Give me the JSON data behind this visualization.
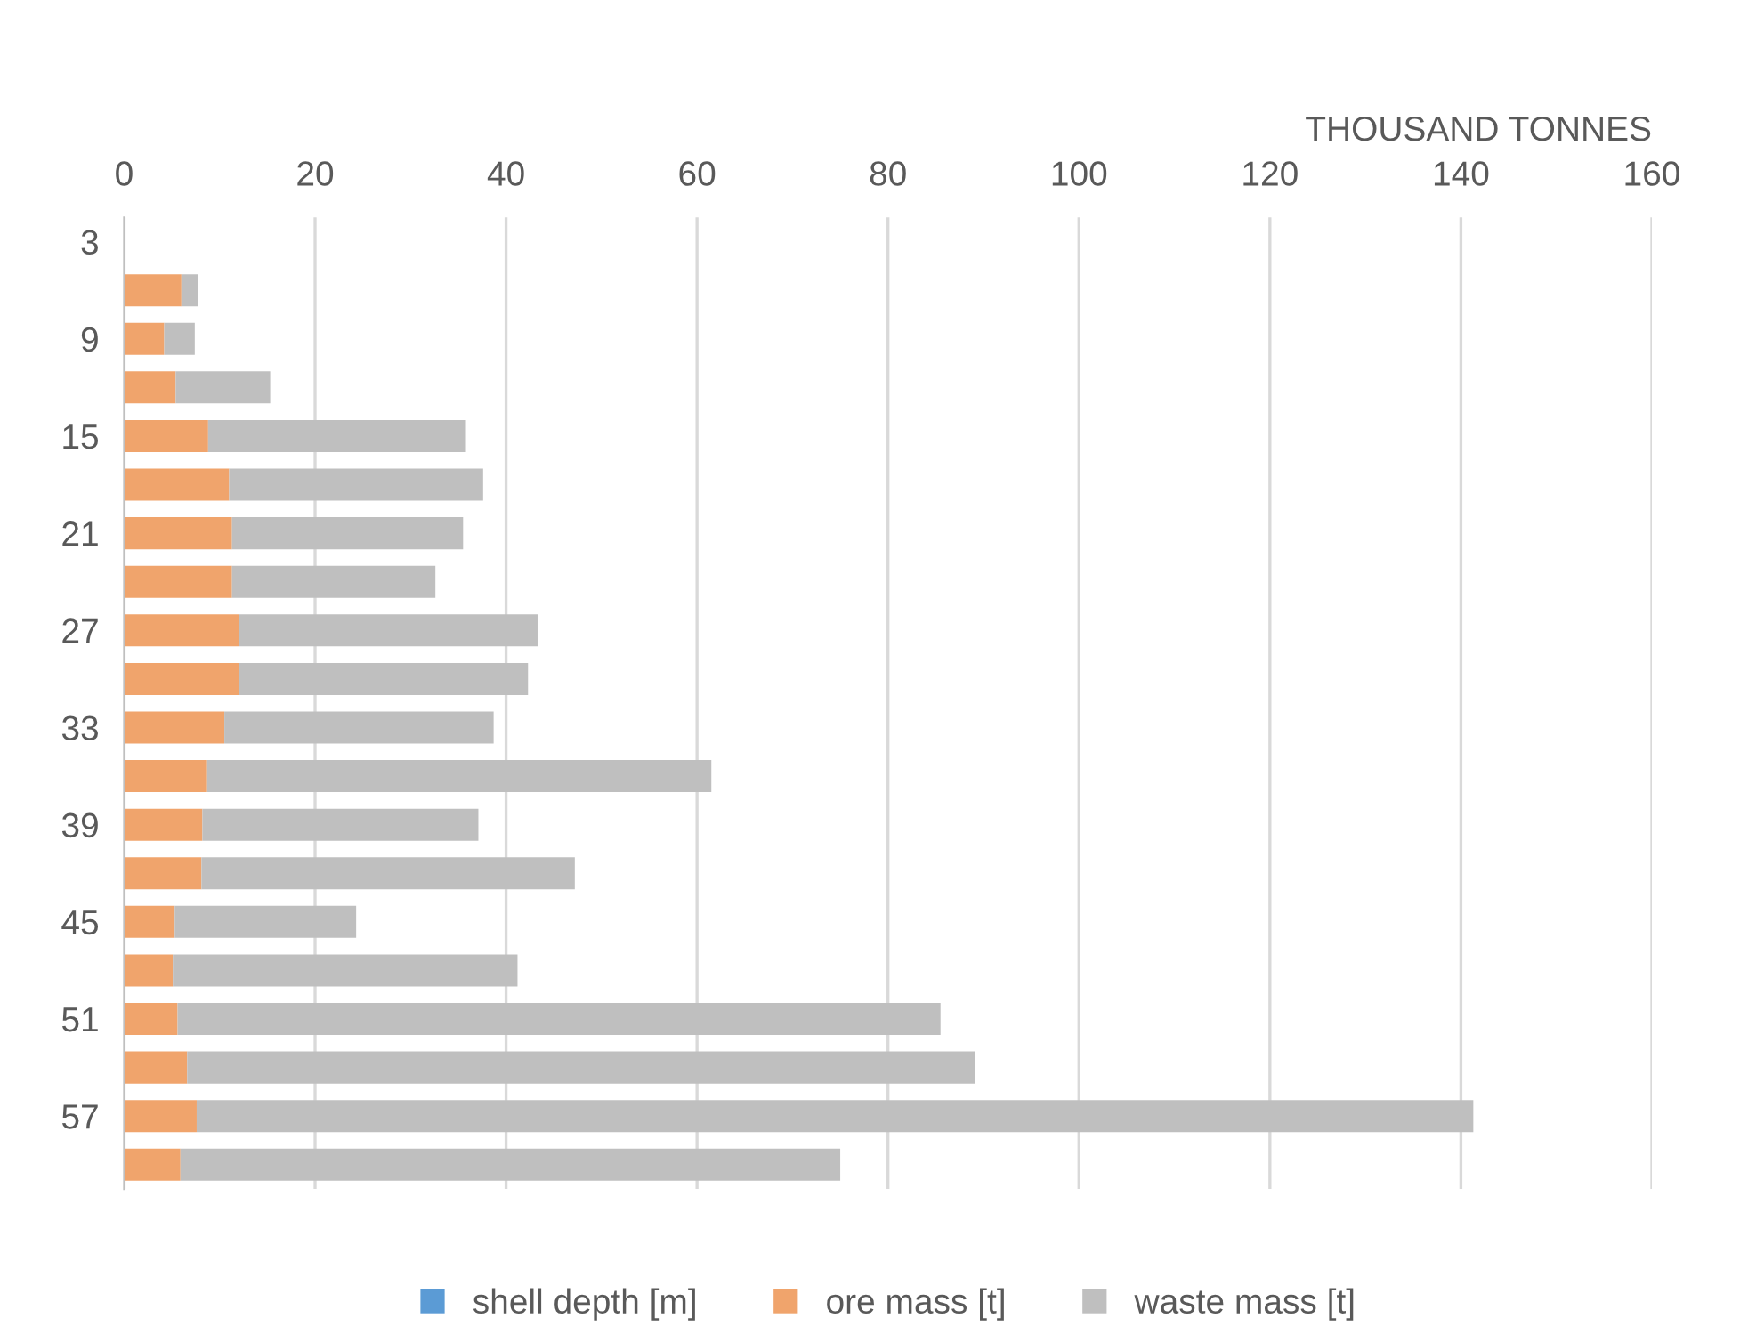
{
  "chart_data": {
    "type": "bar",
    "orientation": "horizontal",
    "stacked": true,
    "xlabel": "THOUSAND TONNES",
    "categories": [
      "3",
      null,
      "9",
      null,
      "15",
      null,
      "21",
      null,
      "27",
      null,
      "33",
      null,
      "39",
      null,
      "45",
      null,
      "51",
      null,
      "57",
      null
    ],
    "series": [
      {
        "name": "shell depth [m]",
        "color": "#5b9bd5",
        "values": [
          null,
          null,
          null,
          null,
          null,
          null,
          null,
          null,
          null,
          null,
          null,
          null,
          null,
          null,
          null,
          null,
          null,
          null,
          null,
          null
        ]
      },
      {
        "name": "ore mass [t]",
        "color": "#f0a46c",
        "values": [
          null,
          6.0,
          4.2,
          5.4,
          8.8,
          11.0,
          11.3,
          11.3,
          12.0,
          12.0,
          10.5,
          8.7,
          8.2,
          8.1,
          5.3,
          5.1,
          5.6,
          6.6,
          7.6,
          5.9
        ]
      },
      {
        "name": "waste mass [t]",
        "color": "#bfbfbf",
        "values": [
          null,
          1.7,
          3.2,
          9.9,
          27.0,
          26.6,
          24.2,
          21.3,
          31.3,
          30.3,
          28.2,
          52.8,
          28.9,
          39.1,
          19.0,
          36.1,
          79.9,
          82.5,
          133.7,
          69.1
        ]
      }
    ],
    "xlim": [
      0,
      160
    ],
    "xticks": [
      0,
      20,
      40,
      60,
      80,
      100,
      120,
      140,
      160
    ],
    "grid": "x",
    "legend": "bottom"
  }
}
